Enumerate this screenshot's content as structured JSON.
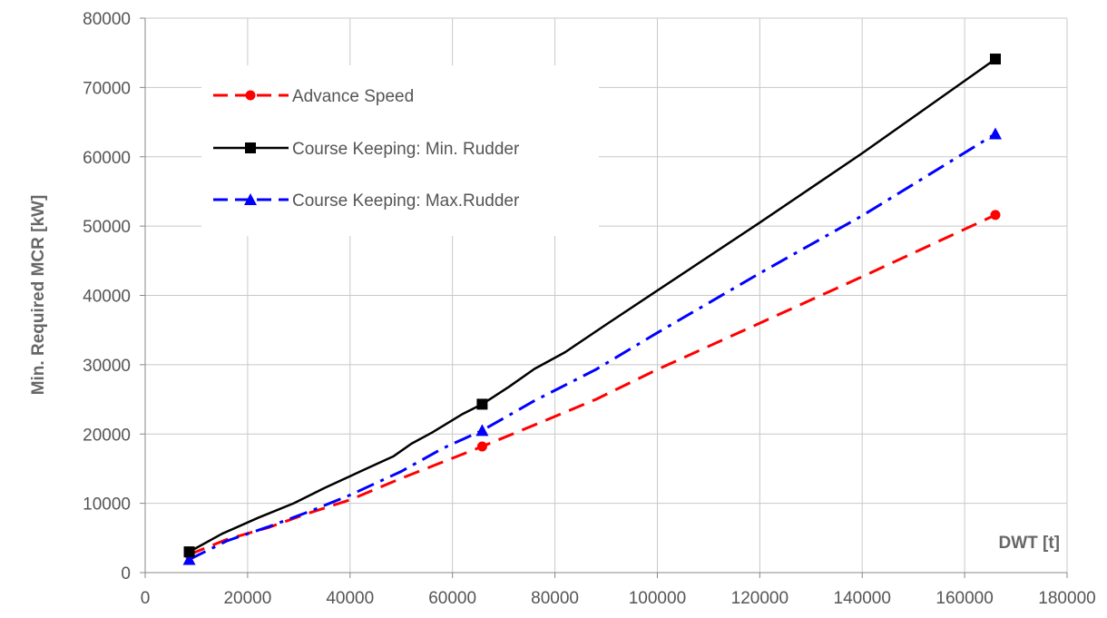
{
  "chart_data": {
    "type": "line",
    "title": "",
    "xlabel": "DWT [t]",
    "ylabel": "Min. Required MCR [kW]",
    "xlim": [
      0,
      180000
    ],
    "ylim": [
      0,
      80000
    ],
    "xticks": [
      0,
      20000,
      40000,
      60000,
      80000,
      100000,
      120000,
      140000,
      160000,
      180000
    ],
    "yticks": [
      0,
      10000,
      20000,
      30000,
      40000,
      50000,
      60000,
      70000,
      80000
    ],
    "xtick_labels": [
      "0",
      "20000",
      "40000",
      "60000",
      "80000",
      "100000",
      "120000",
      "140000",
      "160000",
      "180000"
    ],
    "ytick_labels": [
      "0",
      "10000",
      "20000",
      "30000",
      "40000",
      "50000",
      "60000",
      "70000",
      "80000"
    ],
    "grid": true,
    "legend_position": "top-left",
    "series": [
      {
        "name": "Advance Speed",
        "color": "#ff0000",
        "dash": "dashed",
        "marker": "circle",
        "x": [
          8600,
          16000,
          24000,
          32000,
          40000,
          50000,
          65800,
          77000,
          88000,
          100000,
          120000,
          140000,
          166000
        ],
        "y": [
          2600,
          4800,
          6500,
          8600,
          10500,
          13600,
          18200,
          21600,
          25000,
          29300,
          36000,
          42700,
          51600
        ],
        "markers_at": [
          8600,
          65800,
          166000
        ]
      },
      {
        "name": "Course Keeping: Min. Rudder",
        "color": "#000000",
        "dash": "solid",
        "marker": "square",
        "x": [
          8600,
          15000,
          22000,
          29000,
          35000,
          42000,
          48500,
          52000,
          56000,
          62000,
          65800,
          71000,
          76000,
          82000,
          90000,
          100000,
          120000,
          140000,
          166000
        ],
        "y": [
          3000,
          5600,
          7900,
          10000,
          12200,
          14600,
          16800,
          18600,
          20200,
          22900,
          24300,
          26800,
          29400,
          31800,
          35800,
          40700,
          50500,
          60500,
          74100
        ],
        "markers_at": [
          8600,
          65800,
          166000
        ]
      },
      {
        "name": "Course Keeping: Max.Rudder",
        "color": "#0000ff",
        "dash": "dashdot",
        "marker": "triangle",
        "x": [
          8600,
          16000,
          24000,
          32000,
          40000,
          50000,
          58000,
          65800,
          76000,
          88000,
          100000,
          120000,
          140000,
          166000
        ],
        "y": [
          1900,
          4600,
          6600,
          8800,
          11200,
          14600,
          17900,
          20500,
          24800,
          29300,
          34600,
          43200,
          51500,
          63300
        ],
        "markers_at": [
          8600,
          65800,
          166000
        ]
      }
    ]
  }
}
